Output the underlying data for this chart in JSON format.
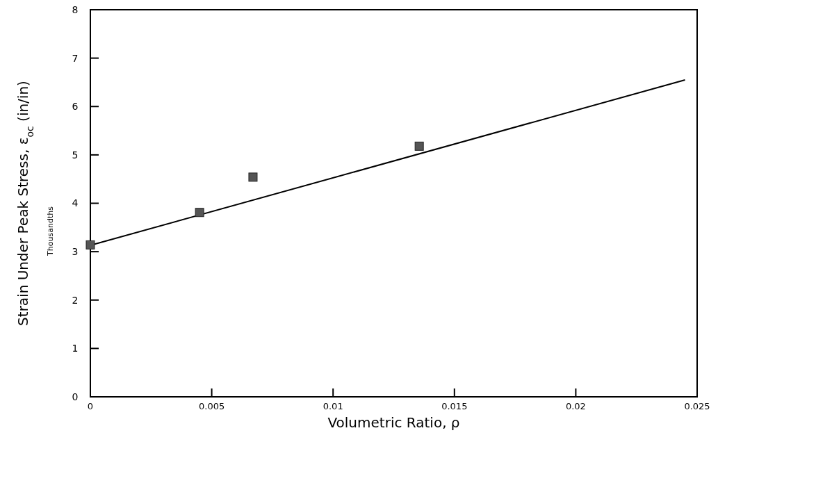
{
  "chart_data": {
    "type": "scatter",
    "xlabel": "Volumetric Ratio, ρ",
    "ylabel": "Strain Under Peak Stress, ε$_{oc}$ (in/in)",
    "annotations": [
      "Thousandths"
    ],
    "xlim": [
      0,
      0.025
    ],
    "xticks": [
      0,
      0.005,
      0.01,
      0.015,
      0.02,
      0.025
    ],
    "ylim": [
      0,
      8
    ],
    "yticks": [
      0,
      1,
      2,
      3,
      4,
      5,
      6,
      7,
      8
    ],
    "grid": false,
    "series": [
      {
        "color": "#555555",
        "marker": "square",
        "x": [
          0,
          0.0045,
          0.0067,
          0.01355
        ],
        "values": [
          3.14,
          3.81,
          4.54,
          5.18
        ]
      },
      {
        "type": "line",
        "color": "#000000",
        "marker": "none",
        "line_style": "solid",
        "x": [
          0,
          0.0245
        ],
        "values": [
          3.13,
          6.55
        ]
      }
    ]
  }
}
